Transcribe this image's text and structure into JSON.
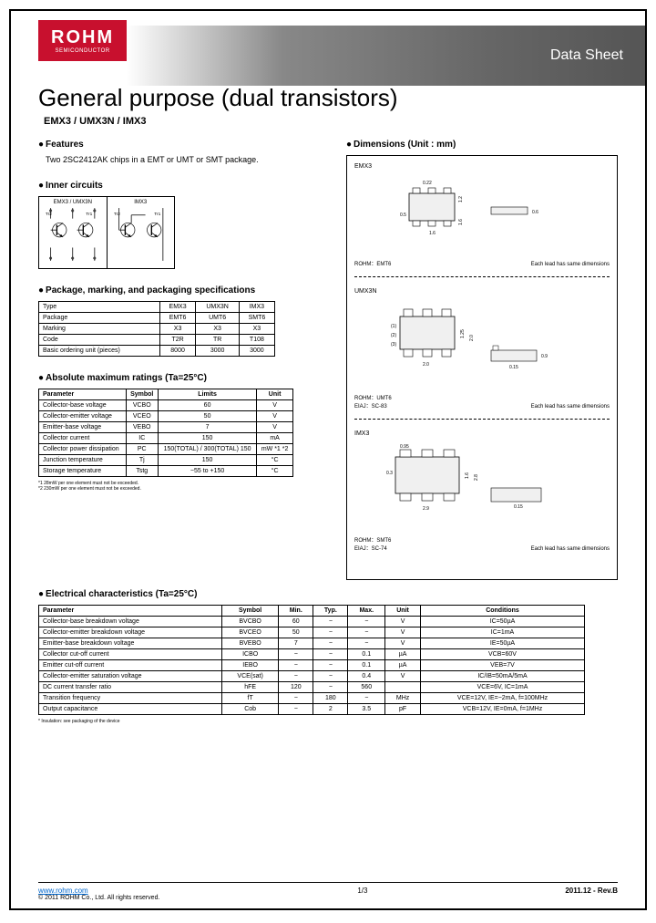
{
  "logo": {
    "name": "ROHM",
    "sub": "SEMICONDUCTOR"
  },
  "header_title": "Data Sheet",
  "main_title": "General purpose (dual transistors)",
  "sub_title": "EMX3 / UMX3N / IMX3",
  "features": {
    "heading": "Features",
    "text": "Two 2SC2412AK chips in a EMT or UMT or SMT package."
  },
  "inner_circuits": {
    "heading": "Inner circuits",
    "left_label": "EMX3 / UMX3N",
    "right_label": "IMX3"
  },
  "pkg": {
    "heading": "Package, marking, and packaging specifications",
    "rows": [
      [
        "Type",
        "EMX3",
        "UMX3N",
        "IMX3"
      ],
      [
        "Package",
        "EMT6",
        "UMT6",
        "SMT6"
      ],
      [
        "Marking",
        "X3",
        "X3",
        "X3"
      ],
      [
        "Code",
        "T2R",
        "TR",
        "T108"
      ],
      [
        "Basic ordering unit (pieces)",
        "8000",
        "3000",
        "3000"
      ]
    ]
  },
  "abs": {
    "heading": "Absolute maximum ratings (Ta=25°C)",
    "headers": [
      "Parameter",
      "Symbol",
      "Limits",
      "Unit"
    ],
    "rows": [
      [
        "Collector-base voltage",
        "VCBO",
        "60",
        "V"
      ],
      [
        "Collector-emitter voltage",
        "VCEO",
        "50",
        "V"
      ],
      [
        "Emitter-base voltage",
        "VEBO",
        "7",
        "V"
      ],
      [
        "Collector current",
        "IC",
        "150",
        "mA"
      ],
      [
        "Collector power dissipation",
        "PC",
        "150(TOTAL) / 300(TOTAL)  150",
        "mW *1 *2"
      ],
      [
        "Junction temperature",
        "Tj",
        "150",
        "°C"
      ],
      [
        "Storage temperature",
        "Tstg",
        "−55 to +150",
        "°C"
      ]
    ],
    "footnote": "*1 28mW per one element must not be exceeded.\n*2 230mW per one element must not be exceeded."
  },
  "dims": {
    "heading": "Dimensions (Unit : mm)",
    "p1": {
      "label": "EMX3",
      "pkg": "ROHM：EMT6",
      "note": "Each lead has same dimensions"
    },
    "p2": {
      "label": "UMX3N",
      "pkg": "ROHM：UMT6\nEIAJ：SC-83",
      "note": "Each lead has same dimensions"
    },
    "p3": {
      "label": "IMX3",
      "pkg": "ROHM：SMT6\nEIAJ：SC-74",
      "note": "Each lead has same dimensions"
    }
  },
  "elec": {
    "heading": "Electrical characteristics (Ta=25°C)",
    "headers": [
      "Parameter",
      "Symbol",
      "Min.",
      "Typ.",
      "Max.",
      "Unit",
      "Conditions"
    ],
    "rows": [
      [
        "Collector-base breakdown voltage",
        "BVCBO",
        "60",
        "−",
        "−",
        "V",
        "IC=50µA"
      ],
      [
        "Collector-emitter breakdown voltage",
        "BVCEO",
        "50",
        "−",
        "−",
        "V",
        "IC=1mA"
      ],
      [
        "Emitter-base breakdown voltage",
        "BVEBO",
        "7",
        "−",
        "−",
        "V",
        "IE=50µA"
      ],
      [
        "Collector cut-off current",
        "ICBO",
        "−",
        "−",
        "0.1",
        "µA",
        "VCB=60V"
      ],
      [
        "Emitter cut-off current",
        "IEBO",
        "−",
        "−",
        "0.1",
        "µA",
        "VEB=7V"
      ],
      [
        "Collector-emitter saturation voltage",
        "VCE(sat)",
        "−",
        "−",
        "0.4",
        "V",
        "IC/IB=50mA/5mA"
      ],
      [
        "DC current transfer ratio",
        "hFE",
        "120",
        "−",
        "560",
        "",
        "VCE=6V, IC=1mA"
      ],
      [
        "Transition frequency",
        "fT",
        "−",
        "180",
        "−",
        "MHz",
        "VCE=12V, IE=−2mA, f=100MHz"
      ],
      [
        "Output capacitance",
        "Cob",
        "−",
        "2",
        "3.5",
        "pF",
        "VCB=12V, IE=0mA, f=1MHz"
      ]
    ],
    "footnote": "* Insulation: see packaging of the device"
  },
  "footer": {
    "link": "www.rohm.com",
    "copy": "© 2011 ROHM Co., Ltd. All rights reserved.",
    "page": "1/3",
    "rev": "2011.12 - Rev.B"
  }
}
